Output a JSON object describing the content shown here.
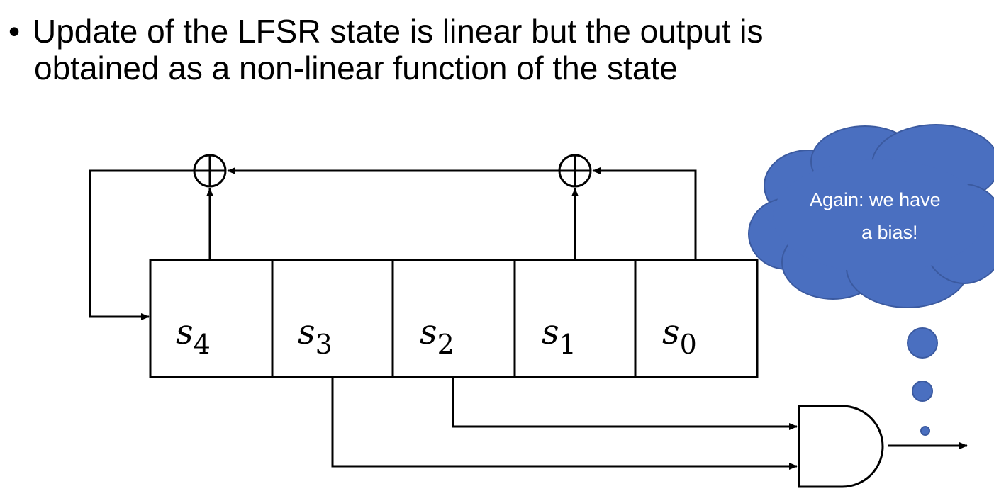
{
  "slide": {
    "bullet_marker": "•",
    "line1": "Update of the LFSR state is linear but the output is",
    "line2": "obtained as a non-linear function of the state"
  },
  "registers": [
    {
      "base": "s",
      "sub": "4"
    },
    {
      "base": "s",
      "sub": "3"
    },
    {
      "base": "s",
      "sub": "2"
    },
    {
      "base": "s",
      "sub": "1"
    },
    {
      "base": "s",
      "sub": "0"
    }
  ],
  "xor_symbol": "⊕",
  "thought_cloud": {
    "line1": "Again: we have",
    "line2": "a bias!",
    "color": "#4a6fc0"
  },
  "colors": {
    "stroke": "#000000",
    "cloud": "#4a6fc0",
    "cloud_outline": "#3b5aa0"
  }
}
